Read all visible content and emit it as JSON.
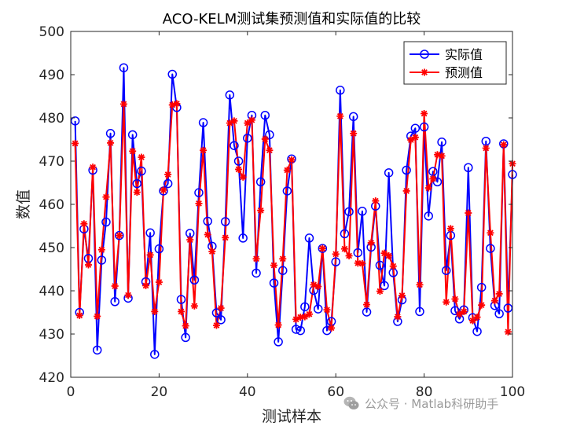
{
  "colors": {
    "actual": "#0000ff",
    "predicted": "#ff0000",
    "axis": "#262626",
    "watermark": "#9a9a9a"
  },
  "watermark": {
    "icon": "wechat-icon",
    "text": "公众号 · Matlab科研助手"
  },
  "chart_data": {
    "type": "line",
    "title": "ACO-KELM测试集预测值和实际值的比较",
    "xlabel": "测试样本",
    "ylabel": "数值",
    "xlim": [
      0,
      100
    ],
    "ylim": [
      420,
      500
    ],
    "x_ticks": [
      0,
      20,
      40,
      60,
      80,
      100
    ],
    "y_ticks": [
      420,
      430,
      440,
      450,
      460,
      470,
      480,
      490,
      500
    ],
    "grid": false,
    "legend_position": "top-right",
    "x": [
      1,
      2,
      3,
      4,
      5,
      6,
      7,
      8,
      9,
      10,
      11,
      12,
      13,
      14,
      15,
      16,
      17,
      18,
      19,
      20,
      21,
      22,
      23,
      24,
      25,
      26,
      27,
      28,
      29,
      30,
      31,
      32,
      33,
      34,
      35,
      36,
      37,
      38,
      39,
      40,
      41,
      42,
      43,
      44,
      45,
      46,
      47,
      48,
      49,
      50,
      51,
      52,
      53,
      54,
      55,
      56,
      57,
      58,
      59,
      60,
      61,
      62,
      63,
      64,
      65,
      66,
      67,
      68,
      69,
      70,
      71,
      72,
      73,
      74,
      75,
      76,
      77,
      78,
      79,
      80,
      81,
      82,
      83,
      84,
      85,
      86,
      87,
      88,
      89,
      90,
      91,
      92,
      93,
      94,
      95,
      96,
      97,
      98,
      99,
      100
    ],
    "series": [
      {
        "name": "实际值",
        "color": "#0000ff",
        "marker": "circle",
        "values": [
          479.3,
          435.0,
          454.3,
          447.5,
          467.9,
          426.3,
          447.1,
          455.9,
          476.4,
          437.5,
          452.8,
          491.6,
          438.3,
          476.1,
          464.8,
          467.7,
          442.1,
          453.4,
          425.3,
          449.7,
          463.1,
          464.8,
          490.1,
          482.4,
          438.0,
          429.2,
          453.3,
          442.5,
          462.7,
          478.9,
          456.1,
          450.3,
          434.9,
          433.3,
          456.0,
          485.3,
          473.6,
          470.0,
          452.2,
          475.3,
          480.6,
          444.1,
          465.2,
          480.6,
          476.1,
          441.8,
          428.2,
          444.7,
          463.1,
          470.5,
          431.1,
          430.8,
          436.3,
          452.2,
          440.1,
          435.8,
          449.8,
          430.8,
          432.9,
          446.7,
          486.4,
          453.2,
          458.3,
          480.3,
          448.8,
          458.4,
          435.1,
          450.1,
          459.6,
          445.9,
          441.2,
          467.3,
          444.2,
          432.9,
          437.9,
          467.9,
          475.8,
          477.6,
          435.2,
          477.9,
          457.3,
          467.6,
          465.2,
          474.4,
          444.7,
          452.8,
          435.4,
          433.5,
          435.6,
          468.5,
          433.8,
          430.6,
          440.8,
          474.6,
          449.8,
          436.6,
          434.7,
          474.0,
          436.0,
          466.9
        ]
      },
      {
        "name": "预测值",
        "color": "#ff0000",
        "marker": "asterisk",
        "values": [
          474.1,
          434.3,
          455.5,
          446.0,
          468.6,
          434.1,
          449.5,
          461.7,
          474.2,
          441.1,
          452.8,
          483.2,
          439.0,
          472.3,
          462.8,
          470.9,
          441.2,
          448.3,
          435.2,
          442.0,
          463.3,
          466.9,
          483.0,
          483.3,
          435.2,
          431.9,
          451.8,
          436.5,
          460.2,
          472.5,
          453.0,
          449.1,
          432.0,
          436.0,
          452.3,
          478.8,
          479.3,
          468.1,
          466.3,
          478.8,
          479.5,
          447.4,
          458.6,
          475.1,
          472.5,
          445.9,
          432.1,
          447.4,
          467.9,
          470.3,
          433.4,
          433.9,
          434.0,
          434.6,
          441.4,
          441.0,
          449.8,
          435.6,
          431.4,
          448.5,
          480.4,
          449.7,
          448.1,
          476.4,
          446.4,
          446.3,
          436.8,
          451.1,
          460.8,
          439.9,
          448.7,
          448.1,
          445.7,
          434.0,
          438.9,
          463.1,
          474.9,
          475.5,
          441.4,
          481.0,
          463.8,
          465.9,
          471.5,
          471.2,
          437.4,
          454.4,
          438.1,
          434.6,
          435.2,
          458.0,
          433.1,
          433.9,
          436.7,
          473.0,
          453.4,
          437.7,
          439.3,
          473.8,
          430.5,
          469.4
        ]
      }
    ]
  }
}
